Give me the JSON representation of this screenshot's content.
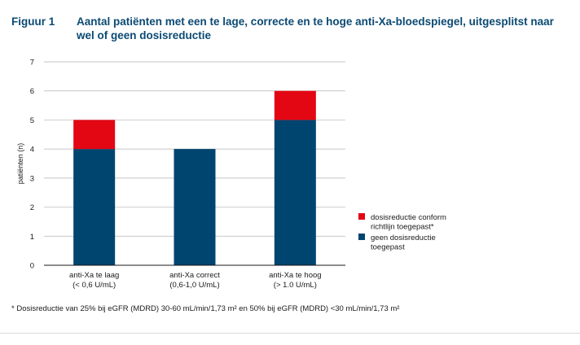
{
  "figure": {
    "label": "Figuur 1",
    "title": "Aantal patiënten met een te lage, correcte en te hoge anti-Xa-bloedspiegel, uitgesplitst naar wel of geen dosisreductie",
    "footnote": "* Dosisreductie van 25% bij eGFR (MDRD) 30-60 mL/min/1,73 m² en 50% bij eGFR (MDRD) <30 mL/min/1,73 m²"
  },
  "chart_data": {
    "type": "bar",
    "stacked": true,
    "categories": [
      [
        "anti-Xa te laag",
        "(< 0,6 U/mL)"
      ],
      [
        "anti-Xa correct",
        "(0,6-1,0 U/mL)"
      ],
      [
        "anti-Xa te hoog",
        "(> 1.0 U/mL)"
      ]
    ],
    "series": [
      {
        "name": "geen dosisreductie toegepast",
        "legend_lines": [
          "geen dosisreductie",
          "toegepast"
        ],
        "color": "#004470",
        "values": [
          4,
          4,
          5
        ]
      },
      {
        "name": "dosisreductie conform richtlijn toegepast*",
        "legend_lines": [
          "dosisreductie conform",
          "richtlijn toegepast*"
        ],
        "color": "#e30613",
        "values": [
          1,
          0,
          1
        ]
      }
    ],
    "ylabel": "patiënten (n)",
    "xlabel": "",
    "ylim": [
      0,
      7
    ],
    "yticks": [
      0,
      1,
      2,
      3,
      4,
      5,
      6,
      7
    ],
    "grid": "horizontal",
    "legend_position": "right"
  }
}
